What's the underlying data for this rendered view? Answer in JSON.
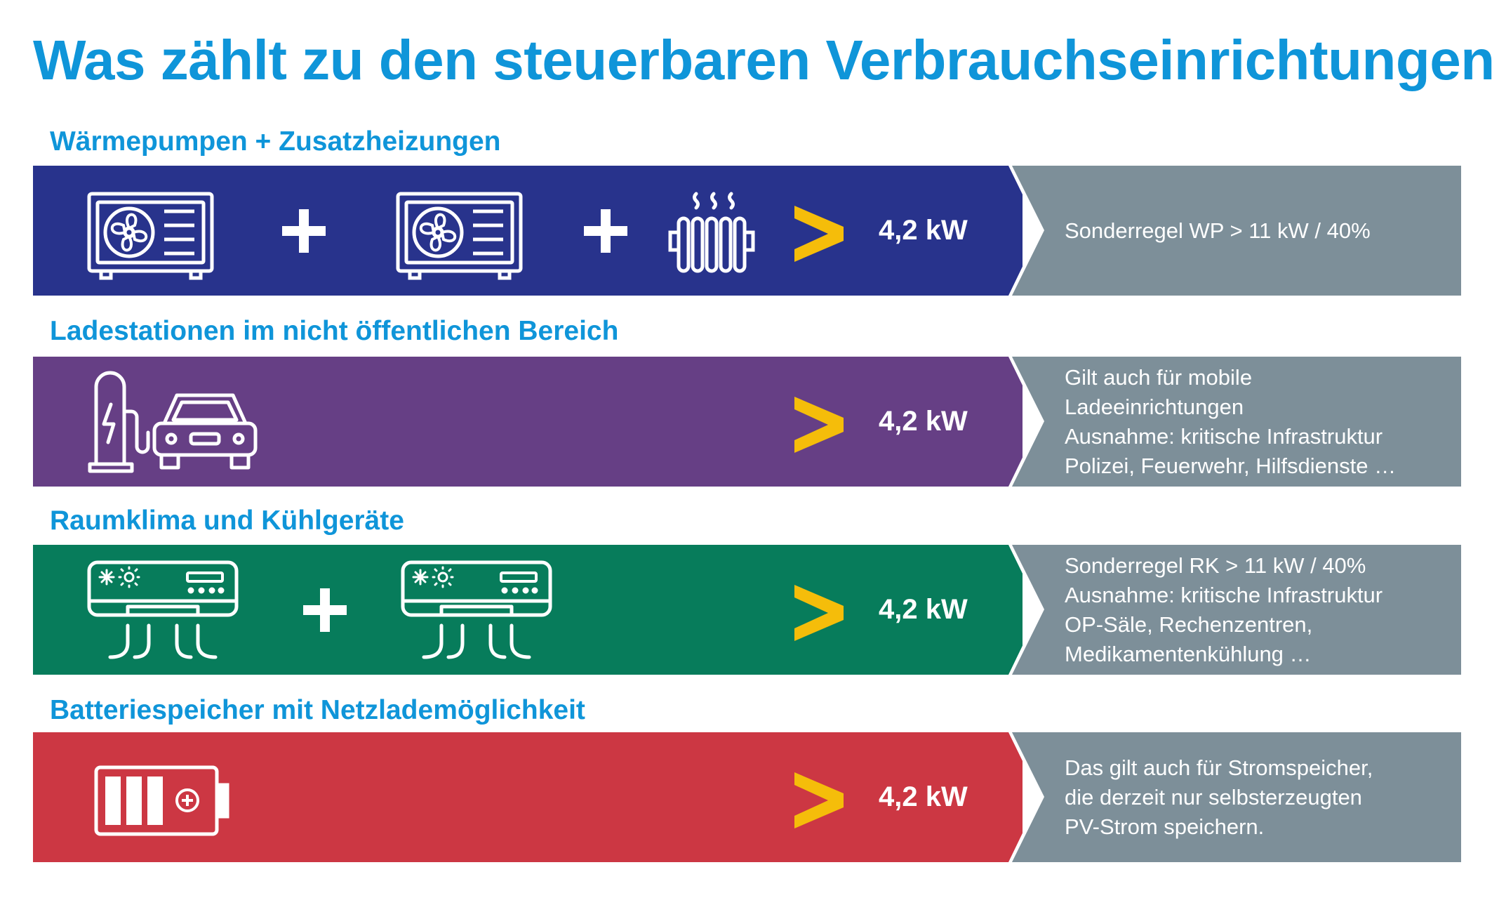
{
  "title": "Was zählt zu den steuerbaren Verbrauchseinrichtungen?",
  "colors": {
    "title_blue": "#0f95d9",
    "band_heatpump": "#28338c",
    "band_charging": "#663f85",
    "band_climate": "#077c5b",
    "band_battery": "#cc3743",
    "side_panel": "#7d8f99",
    "chevron": "#f5bd0a"
  },
  "sections": [
    {
      "heading": "Wärmepumpen + Zusatzheizungen",
      "value": "4,2 kW",
      "note": [
        "Sonderregel WP > 11 kW / 40%"
      ],
      "icons": [
        "heat-pump-icon",
        "plus-icon",
        "heat-pump-icon",
        "plus-icon",
        "radiator-icon"
      ]
    },
    {
      "heading": "Ladestationen im nicht öffentlichen Bereich",
      "value": "4,2 kW",
      "note": [
        "Gilt auch für mobile",
        "Ladeeinrichtungen",
        "Ausnahme: kritische Infrastruktur",
        "Polizei, Feuerwehr, Hilfsdienste …"
      ],
      "icons": [
        "charging-station-icon",
        "car-icon"
      ]
    },
    {
      "heading": "Raumklima und Kühlgeräte",
      "value": "4,2 kW",
      "note": [
        "Sonderregel RK > 11 kW / 40%",
        "Ausnahme: kritische Infrastruktur",
        "OP-Säle, Rechenzentren,",
        "Medikamentenkühlung …"
      ],
      "icons": [
        "air-conditioner-icon",
        "plus-icon",
        "air-conditioner-icon"
      ]
    },
    {
      "heading": "Batteriespeicher mit Netzlademöglichkeit",
      "value": "4,2 kW",
      "note": [
        "Das gilt auch für Stromspeicher,",
        "die derzeit nur selbsterzeugten",
        "PV-Strom speichern."
      ],
      "icons": [
        "battery-icon"
      ]
    }
  ]
}
